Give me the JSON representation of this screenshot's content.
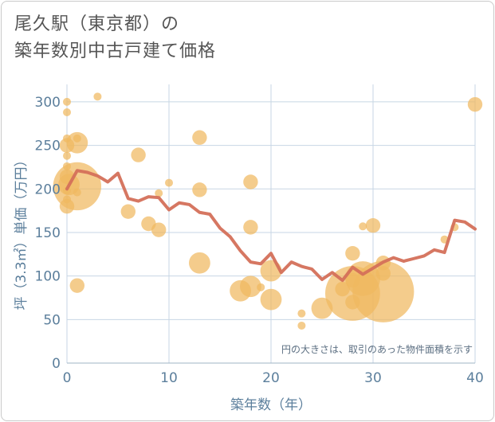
{
  "chart_data": {
    "type": "scatter",
    "title_line1": "尾久駅（東京都）の",
    "title_line2": "築年数別中古戸建て価格",
    "xlabel": "築年数（年）",
    "ylabel": "坪（3.3㎡）単価（万円）",
    "xlim": [
      0,
      40
    ],
    "ylim": [
      0,
      320
    ],
    "xticks": [
      0,
      10,
      20,
      30,
      40
    ],
    "yticks": [
      0,
      50,
      100,
      150,
      200,
      250,
      300
    ],
    "note": "円の大きさは、取引のあった物件面積を示す",
    "colors": {
      "bubble": "#f0b860",
      "line": "#d4705a",
      "grid": "#c7d6e4",
      "axis": "#5c7f9c"
    },
    "bubbles": [
      {
        "x": 0,
        "y": 300,
        "s": 1
      },
      {
        "x": 0,
        "y": 288,
        "s": 1
      },
      {
        "x": 0,
        "y": 258,
        "s": 1
      },
      {
        "x": 0,
        "y": 250,
        "s": 2
      },
      {
        "x": 0,
        "y": 238,
        "s": 1
      },
      {
        "x": 0,
        "y": 226,
        "s": 1
      },
      {
        "x": 0,
        "y": 214,
        "s": 2
      },
      {
        "x": 0,
        "y": 198,
        "s": 1
      },
      {
        "x": 0,
        "y": 188,
        "s": 1
      },
      {
        "x": 0,
        "y": 180,
        "s": 2
      },
      {
        "x": 0.2,
        "y": 205,
        "s": 3
      },
      {
        "x": 1,
        "y": 253,
        "s": 3
      },
      {
        "x": 1,
        "y": 258,
        "s": 1
      },
      {
        "x": 1,
        "y": 203,
        "s": 7
      },
      {
        "x": 1,
        "y": 196,
        "s": 1
      },
      {
        "x": 1,
        "y": 89,
        "s": 2
      },
      {
        "x": 3,
        "y": 306,
        "s": 1
      },
      {
        "x": 6,
        "y": 174,
        "s": 2
      },
      {
        "x": 7,
        "y": 239,
        "s": 2
      },
      {
        "x": 8,
        "y": 160,
        "s": 2
      },
      {
        "x": 9,
        "y": 153,
        "s": 2
      },
      {
        "x": 9,
        "y": 195,
        "s": 1
      },
      {
        "x": 10,
        "y": 207,
        "s": 1
      },
      {
        "x": 13,
        "y": 259,
        "s": 2
      },
      {
        "x": 13,
        "y": 199,
        "s": 2
      },
      {
        "x": 13,
        "y": 115,
        "s": 3
      },
      {
        "x": 17,
        "y": 83,
        "s": 3
      },
      {
        "x": 18,
        "y": 208,
        "s": 2
      },
      {
        "x": 18,
        "y": 156,
        "s": 2
      },
      {
        "x": 18,
        "y": 88,
        "s": 3
      },
      {
        "x": 19,
        "y": 87,
        "s": 1
      },
      {
        "x": 20,
        "y": 106,
        "s": 3
      },
      {
        "x": 20,
        "y": 73,
        "s": 3
      },
      {
        "x": 23,
        "y": 57,
        "s": 1
      },
      {
        "x": 23,
        "y": 43,
        "s": 1
      },
      {
        "x": 25,
        "y": 63,
        "s": 3
      },
      {
        "x": 27,
        "y": 85,
        "s": 2
      },
      {
        "x": 28,
        "y": 126,
        "s": 2
      },
      {
        "x": 28,
        "y": 95,
        "s": 2
      },
      {
        "x": 28,
        "y": 80,
        "s": 8
      },
      {
        "x": 28,
        "y": 70,
        "s": 2
      },
      {
        "x": 29,
        "y": 157,
        "s": 1
      },
      {
        "x": 29,
        "y": 97,
        "s": 5
      },
      {
        "x": 30,
        "y": 158,
        "s": 2
      },
      {
        "x": 31,
        "y": 115,
        "s": 2
      },
      {
        "x": 31,
        "y": 103,
        "s": 2
      },
      {
        "x": 31,
        "y": 82,
        "s": 9
      },
      {
        "x": 37,
        "y": 142,
        "s": 1
      },
      {
        "x": 38,
        "y": 156,
        "s": 1
      },
      {
        "x": 40,
        "y": 297,
        "s": 2
      }
    ],
    "average_line": {
      "x": [
        0,
        1,
        2,
        3,
        4,
        5,
        6,
        7,
        8,
        9,
        10,
        11,
        12,
        13,
        14,
        15,
        16,
        17,
        18,
        19,
        20,
        21,
        22,
        23,
        24,
        25,
        26,
        27,
        28,
        29,
        30,
        31,
        32,
        33,
        34,
        35,
        36,
        37,
        38,
        39,
        40
      ],
      "y": [
        200,
        221,
        219,
        215,
        208,
        218,
        189,
        186,
        191,
        190,
        176,
        184,
        182,
        173,
        171,
        155,
        145,
        129,
        116,
        114,
        126,
        104,
        116,
        111,
        108,
        96,
        104,
        95,
        110,
        102,
        109,
        116,
        121,
        117,
        120,
        123,
        130,
        127,
        164,
        162,
        154
      ]
    }
  }
}
